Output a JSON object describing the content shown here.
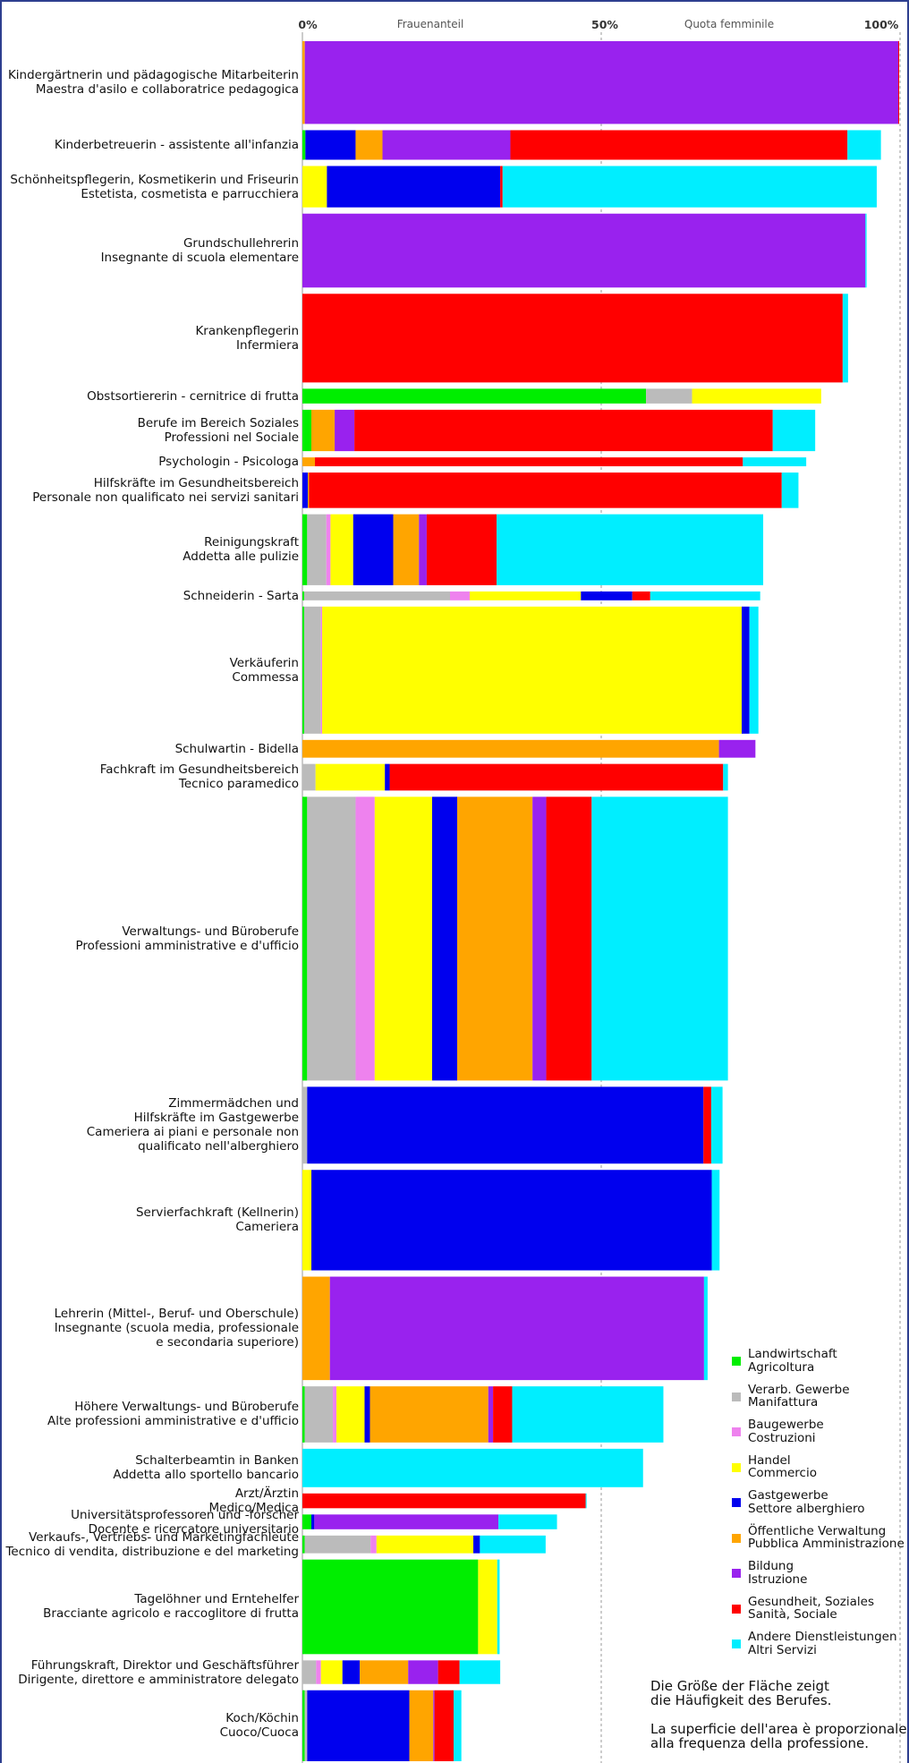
{
  "header": {
    "tick_0": "0%",
    "tick_50": "50%",
    "tick_100": "100%",
    "title_de": "Frauenanteil",
    "title_it": "Quota femminile"
  },
  "legend": [
    {
      "de": "Landwirtschaft",
      "it": "Agricoltura",
      "color": "#00ee00"
    },
    {
      "de": "Verarb. Gewerbe",
      "it": "Manifattura",
      "color": "#bbbbbb"
    },
    {
      "de": "Baugewerbe",
      "it": "Costruzioni",
      "color": "#ee82ee"
    },
    {
      "de": "Handel",
      "it": "Commercio",
      "color": "#ffff00"
    },
    {
      "de": "Gastgewerbe",
      "it": "Settore alberghiero",
      "color": "#0000ee"
    },
    {
      "de": "Öffentliche Verwaltung",
      "it": "Pubblica Amministrazione",
      "color": "#ffa500"
    },
    {
      "de": "Bildung",
      "it": "Istruzione",
      "color": "#9922ee"
    },
    {
      "de": "Gesundheit, Soziales",
      "it": "Sanità, Sociale",
      "color": "#ff0000"
    },
    {
      "de": "Andere Dienstleistungen",
      "it": "Altri Servizi",
      "color": "#00eeff"
    }
  ],
  "notes": {
    "de_line1": "Die Größe der Fläche zeigt",
    "de_line2": "die Häufigkeit des Berufes.",
    "it_line1": "La superficie dell'area è proporzionale",
    "it_line2": "alla frequenza della professione."
  },
  "chart_data": {
    "type": "bar",
    "orientation": "horizontal",
    "stacked": true,
    "xlabel": "Frauenanteil / Quota femminile",
    "xlim": [
      0,
      100
    ],
    "xticks": [
      "0%",
      "50%",
      "100%"
    ],
    "series_names": [
      "Landwirtschaft / Agricoltura",
      "Verarb. Gewerbe / Manifattura",
      "Baugewerbe / Costruzioni",
      "Handel / Commercio",
      "Gastgewerbe / Settore alberghiero",
      "Öffentliche Verwaltung / Pubblica Amministrazione",
      "Bildung / Istruzione",
      "Gesundheit, Soziales / Sanità, Sociale",
      "Andere Dienstleistungen / Altri Servizi"
    ],
    "note": "Bar thickness is proportional to the frequency of the profession; segment values are percentage points of the female share.",
    "rows": [
      {
        "lines": [
          "Kindergärtnerin und pädagogische Mitarbeiterin",
          "Maestra d'asilo e collaboratrice pedagogica"
        ],
        "height": 2.8,
        "values": [
          0,
          0,
          0,
          0,
          0,
          0.4,
          99.3,
          0.1,
          0
        ]
      },
      {
        "lines": [
          "Kinderbetreuerin - assistente all'infanzia"
        ],
        "height": 1.0,
        "values": [
          0.5,
          0,
          0,
          0,
          8.4,
          4.5,
          21.4,
          56.4,
          5.6
        ]
      },
      {
        "lines": [
          "Schönheitspflegerin, Kosmetikerin und Friseurin",
          "Estetista, cosmetista e parrucchiera"
        ],
        "height": 1.4,
        "values": [
          0,
          0,
          0,
          4.1,
          29,
          0,
          0,
          0.4,
          62.6
        ]
      },
      {
        "lines": [
          "Grundschullehrerin",
          "Insegnante di scuola elementare"
        ],
        "height": 2.5,
        "values": [
          0,
          0,
          0,
          0,
          0,
          0,
          94.2,
          0,
          0.2
        ]
      },
      {
        "lines": [
          "Krankenpflegerin",
          "Infermiera"
        ],
        "height": 3.0,
        "values": [
          0,
          0,
          0,
          0,
          0,
          0,
          0,
          90.4,
          0.9
        ]
      },
      {
        "lines": [
          "Obstsortiererin - cernitrice di frutta"
        ],
        "height": 0.5,
        "values": [
          57.5,
          7.7,
          0,
          21.6,
          0,
          0,
          0,
          0,
          0
        ]
      },
      {
        "lines": [
          "Berufe im Bereich Soziales",
          "Professioni nel Sociale"
        ],
        "height": 1.4,
        "values": [
          1.5,
          0,
          0,
          0,
          0,
          3.9,
          3.3,
          70,
          7.1
        ]
      },
      {
        "lines": [
          "Psychologin - Psicologa"
        ],
        "height": 0.3,
        "values": [
          0,
          0,
          0,
          0,
          0,
          2.1,
          0,
          71.6,
          10.6
        ]
      },
      {
        "lines": [
          "Hilfskräfte im Gesundheitsbereich",
          "Personale non qualificato nei servizi sanitari"
        ],
        "height": 1.2,
        "values": [
          0,
          0,
          0,
          0,
          0.9,
          0.2,
          0,
          79.1,
          2.8
        ]
      },
      {
        "lines": [
          "Reinigungskraft",
          "Addetta alle pulizie"
        ],
        "height": 2.4,
        "values": [
          0.8,
          3.2,
          0.7,
          3.8,
          6.7,
          4.3,
          1.3,
          11.7,
          44.6
        ]
      },
      {
        "lines": [
          "Schneiderin - Sarta"
        ],
        "height": 0.3,
        "values": [
          0.3,
          24.4,
          3.3,
          18.6,
          8.6,
          0,
          0,
          3,
          18.4
        ]
      },
      {
        "lines": [
          "Verkäuferin",
          "Commessa"
        ],
        "height": 4.3,
        "values": [
          0.3,
          2.8,
          0.2,
          70.2,
          1.3,
          0,
          0,
          0,
          1.5
        ]
      },
      {
        "lines": [
          "Schulwartin - Bidella"
        ],
        "height": 0.6,
        "values": [
          0,
          0,
          0,
          0,
          0,
          69.7,
          6.1,
          0,
          0
        ]
      },
      {
        "lines": [
          "Fachkraft im Gesundheitsbereich",
          "Tecnico paramedico"
        ],
        "height": 0.9,
        "values": [
          0,
          2.2,
          0,
          11.6,
          0.8,
          0,
          0,
          55.8,
          0.8
        ]
      },
      {
        "lines": [
          "Verwaltungs- und Büroberufe",
          "Professioni amministrative e d'ufficio"
        ],
        "height": 9.6,
        "values": [
          0.8,
          8.1,
          3.2,
          9.6,
          4.2,
          12.6,
          2.3,
          7.6,
          22.8
        ]
      },
      {
        "lines": [
          "Zimmermädchen und",
          "Hilfskräfte im Gastgewerbe",
          "Cameriera ai piani e personale non",
          "qualificato nell'alberghiero"
        ],
        "height": 2.6,
        "values": [
          0,
          0.8,
          0,
          0,
          66.3,
          0,
          0,
          1.3,
          1.9
        ]
      },
      {
        "lines": [
          "Servierfachkraft (Kellnerin)",
          "Cameriera"
        ],
        "height": 3.4,
        "values": [
          0,
          0,
          0,
          1.5,
          67,
          0,
          0,
          0,
          1.3
        ]
      },
      {
        "lines": [
          "Lehrerin (Mittel-, Beruf- und Oberschule)",
          "Insegnante (scuola media, professionale",
          "e secondaria superiore)"
        ],
        "height": 3.5,
        "values": [
          0,
          0,
          0,
          0,
          0,
          4.6,
          62.6,
          0,
          0.6
        ]
      },
      {
        "lines": [
          "Höhere Verwaltungs- und Büroberufe",
          "Alte professioni amministrative e d'ufficio"
        ],
        "height": 1.9,
        "values": [
          0.4,
          4.7,
          0.6,
          4.7,
          0.9,
          19.8,
          0.8,
          3.2,
          25.3
        ]
      },
      {
        "lines": [
          "Schalterbeamtin in Banken",
          "Addetta allo sportello bancario"
        ],
        "height": 1.3,
        "values": [
          0,
          0,
          0,
          0,
          0,
          0,
          0,
          0,
          57
        ]
      },
      {
        "lines": [
          "Arzt/Ärztin",
          "Medico/Medica"
        ],
        "height": 0.5,
        "values": [
          0,
          0,
          0,
          0,
          0,
          0,
          0,
          47.4,
          0.1
        ]
      },
      {
        "lines": [
          "Universitätsprofessoren und -forscher",
          "Docente e ricercatore universitario"
        ],
        "height": 0.5,
        "values": [
          1.5,
          0,
          0,
          0,
          0.5,
          0,
          30.8,
          0,
          9.8
        ]
      },
      {
        "lines": [
          "Verkaufs-, Vertriebs- und Marketingfachleute",
          "Tecnico di vendita, distribuzione e del marketing"
        ],
        "height": 0.6,
        "values": [
          0.4,
          11,
          1,
          16.2,
          1.1,
          0,
          0,
          0,
          11
        ]
      },
      {
        "lines": [
          "Tagelöhner und Erntehelfer",
          "Bracciante agricolo e raccoglitore di frutta"
        ],
        "height": 3.2,
        "values": [
          29.4,
          0,
          0,
          3.2,
          0,
          0,
          0,
          0,
          0.4
        ]
      },
      {
        "lines": [
          "Führungskraft, Direktor und Geschäftsführer",
          "Dirigente, direttore e amministratore delegato"
        ],
        "height": 0.8,
        "values": [
          0,
          2.3,
          0.8,
          3.6,
          2.9,
          8.1,
          5,
          3.6,
          6.8
        ]
      },
      {
        "lines": [
          "Koch/Köchin",
          "Cuoco/Cuoca"
        ],
        "height": 2.4,
        "values": [
          0.4,
          0.4,
          0,
          0,
          17.1,
          4,
          0.2,
          3.2,
          1.3
        ]
      }
    ]
  }
}
